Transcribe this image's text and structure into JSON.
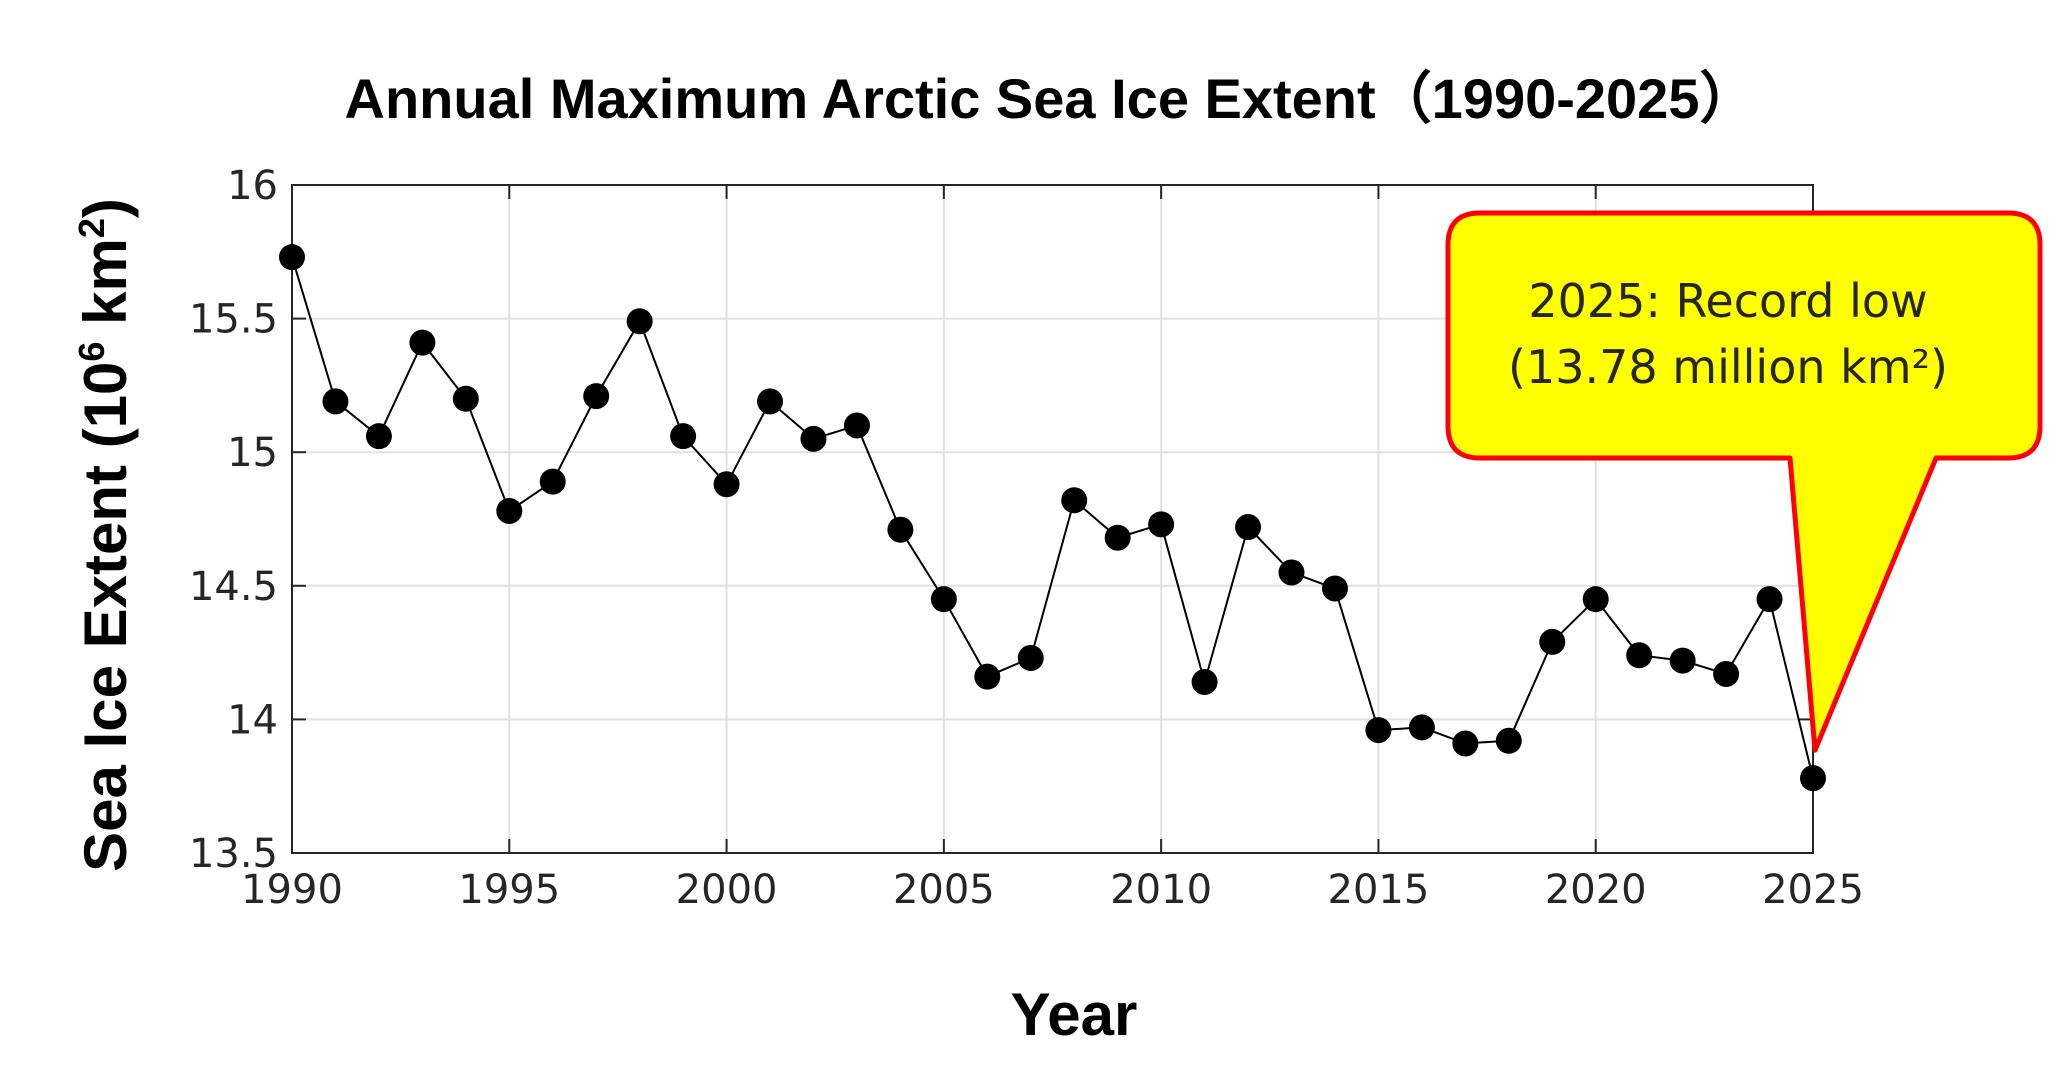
{
  "chart_data": {
    "type": "line",
    "title": "Annual Maximum Arctic Sea Ice Extent（1990-2025）",
    "xlabel": "Year",
    "ylabel": "Sea Ice Extent (10",
    "ylabel_sup": "6",
    "ylabel_unit": " km",
    "ylabel_unit_sup": "2",
    "ylabel_close": ")",
    "xlim": [
      1990,
      2025
    ],
    "ylim": [
      13.5,
      16
    ],
    "xticks": [
      1990,
      1995,
      2000,
      2005,
      2010,
      2015,
      2020,
      2025
    ],
    "yticks": [
      13.5,
      14,
      14.5,
      15,
      15.5,
      16
    ],
    "xtick_labels": [
      "1990",
      "1995",
      "2000",
      "2005",
      "2010",
      "2015",
      "2020",
      "2025"
    ],
    "ytick_labels": [
      "13.5",
      "14",
      "14.5",
      "15",
      "15.5",
      "16"
    ],
    "grid": true,
    "marker": "filled-circle",
    "line_color": "#000000",
    "series": [
      {
        "x": [
          1990,
          1991,
          1992,
          1993,
          1994,
          1995,
          1996,
          1997,
          1998,
          1999,
          2000,
          2001,
          2002,
          2003,
          2004,
          2005,
          2006,
          2007,
          2008,
          2009,
          2010,
          2011,
          2012,
          2013,
          2014,
          2015,
          2016,
          2017,
          2018,
          2019,
          2020,
          2021,
          2022,
          2023,
          2024,
          2025
        ],
        "values": [
          15.73,
          15.19,
          15.06,
          15.41,
          15.2,
          14.78,
          14.89,
          15.21,
          15.49,
          15.06,
          14.88,
          15.19,
          15.05,
          15.1,
          14.71,
          14.45,
          14.16,
          14.23,
          14.82,
          14.68,
          14.73,
          14.14,
          14.72,
          14.55,
          14.49,
          13.96,
          13.97,
          13.91,
          13.92,
          14.29,
          14.45,
          14.24,
          14.22,
          14.17,
          14.45,
          13.78
        ]
      }
    ],
    "annotation": {
      "lines": [
        "2025: Record low",
        "(13.78 million km²)"
      ],
      "target_x": 2025,
      "target_y": 13.78,
      "fill_color": "#ffff00",
      "border_color": "#ff0000"
    }
  }
}
